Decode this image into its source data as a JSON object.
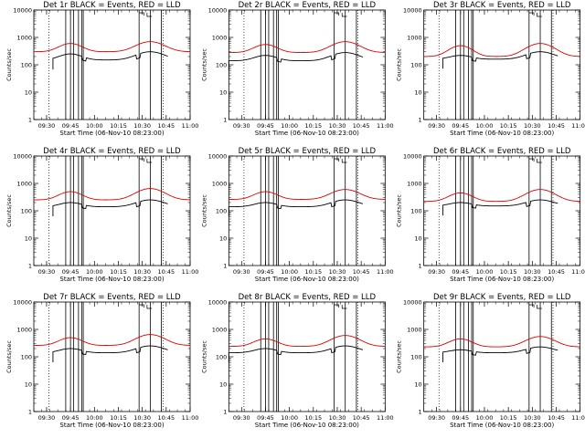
{
  "chart_data": [
    {
      "type": "line",
      "title": "Det 1r BLACK = Events, RED = LLD",
      "xlabel": "Start Time (06-Nov-10 08:23:00)",
      "ylabel": "Counts/sec",
      "yscale": "log",
      "ylim": [
        1,
        10000
      ],
      "xlim": [
        "09:22",
        "11:00"
      ],
      "xticks": [
        "09:30",
        "09:45",
        "10:00",
        "10:15",
        "10:30",
        "10:45",
        "11:00"
      ],
      "yticks": [
        "1",
        "10",
        "100",
        "1000",
        "10000"
      ],
      "red_peaks": [
        600,
        700
      ],
      "red_base": 300,
      "black_peaks": [
        250,
        300
      ],
      "black_base": 150,
      "black_start": "09:34"
    },
    {
      "type": "line",
      "title": "Det 2r BLACK = Events, RED = LLD",
      "xlabel": "Start Time (06-Nov-10 08:23:00)",
      "ylabel": "Counts/sec",
      "yscale": "log",
      "ylim": [
        1,
        10000
      ],
      "xlim": [
        "09:22",
        "11:00"
      ],
      "xticks": [
        "09:30",
        "09:45",
        "10:00",
        "10:15",
        "10:30",
        "10:45",
        "11:00"
      ],
      "yticks": [
        "1",
        "10",
        "100",
        "1000",
        "10000"
      ],
      "red_peaks": [
        550,
        700
      ],
      "red_base": 280,
      "black_peaks": [
        220,
        280
      ],
      "black_base": 140,
      "black_start": "09:22"
    },
    {
      "type": "line",
      "title": "Det 3r BLACK = Events, RED = LLD",
      "xlabel": "Start Time (06-Nov-10 08:23:00)",
      "ylabel": "Counts/sec",
      "yscale": "log",
      "ylim": [
        1,
        10000
      ],
      "xlim": [
        "09:22",
        "11:00"
      ],
      "xticks": [
        "09:30",
        "09:45",
        "10:00",
        "10:15",
        "10:30",
        "10:45",
        "11:00"
      ],
      "yticks": [
        "1",
        "10",
        "100",
        "1000",
        "10000"
      ],
      "red_peaks": [
        500,
        600
      ],
      "red_base": 200,
      "black_peaks": [
        220,
        300
      ],
      "black_base": 160,
      "black_start": "09:34"
    },
    {
      "type": "line",
      "title": "Det 4r BLACK = Events, RED = LLD",
      "xlabel": "Start Time (06-Nov-10 08:23:00)",
      "ylabel": "Counts/sec",
      "yscale": "log",
      "ylim": [
        1,
        10000
      ],
      "xlim": [
        "09:22",
        "11:00"
      ],
      "xticks": [
        "09:30",
        "09:45",
        "10:00",
        "10:15",
        "10:30",
        "10:45",
        "11:00"
      ],
      "yticks": [
        "1",
        "10",
        "100",
        "1000",
        "10000"
      ],
      "red_peaks": [
        500,
        650
      ],
      "red_base": 250,
      "black_peaks": [
        200,
        250
      ],
      "black_base": 140,
      "black_start": "09:34"
    },
    {
      "type": "line",
      "title": "Det 5r BLACK = Events, RED = LLD",
      "xlabel": "Start Time (06-Nov-10 08:23:00)",
      "ylabel": "Counts/sec",
      "yscale": "log",
      "ylim": [
        1,
        10000
      ],
      "xlim": [
        "09:22",
        "11:00"
      ],
      "xticks": [
        "09:30",
        "09:45",
        "10:00",
        "10:15",
        "10:30",
        "10:45",
        "11:00"
      ],
      "yticks": [
        "1",
        "10",
        "100",
        "1000",
        "10000"
      ],
      "red_peaks": [
        500,
        600
      ],
      "red_base": 260,
      "black_peaks": [
        200,
        250
      ],
      "black_base": 140,
      "black_start": "09:22"
    },
    {
      "type": "line",
      "title": "Det 6r BLACK = Events, RED = LLD",
      "xlabel": "Start Time (06-Nov-10 08:23:00)",
      "ylabel": "Counts/sec",
      "yscale": "log",
      "ylim": [
        1,
        10000
      ],
      "xlim": [
        "09:22",
        "11:00"
      ],
      "xticks": [
        "09:30",
        "09:45",
        "10:00",
        "10:15",
        "10:30",
        "10:45",
        "11:00"
      ],
      "yticks": [
        "1",
        "10",
        "100",
        "1000",
        "10000"
      ],
      "red_peaks": [
        450,
        600
      ],
      "red_base": 220,
      "black_peaks": [
        200,
        250
      ],
      "black_base": 150,
      "black_start": "09:34"
    },
    {
      "type": "line",
      "title": "Det 7r BLACK = Events, RED = LLD",
      "xlabel": "Start Time (06-Nov-10 08:23:00)",
      "ylabel": "Counts/sec",
      "yscale": "log",
      "ylim": [
        1,
        10000
      ],
      "xlim": [
        "09:22",
        "11:00"
      ],
      "xticks": [
        "09:30",
        "09:45",
        "10:00",
        "10:15",
        "10:30",
        "10:45",
        "11:00"
      ],
      "yticks": [
        "1",
        "10",
        "100",
        "1000",
        "10000"
      ],
      "red_peaks": [
        500,
        650
      ],
      "red_base": 260,
      "black_peaks": [
        200,
        250
      ],
      "black_base": 140,
      "black_start": "09:34"
    },
    {
      "type": "line",
      "title": "Det 8r BLACK = Events, RED = LLD",
      "xlabel": "Start Time (06-Nov-10 08:23:00)",
      "ylabel": "Counts/sec",
      "yscale": "log",
      "ylim": [
        1,
        10000
      ],
      "xlim": [
        "09:22",
        "11:00"
      ],
      "xticks": [
        "09:30",
        "09:45",
        "10:00",
        "10:15",
        "10:30",
        "10:45",
        "11:00"
      ],
      "yticks": [
        "1",
        "10",
        "100",
        "1000",
        "10000"
      ],
      "red_peaks": [
        450,
        600
      ],
      "red_base": 240,
      "black_peaks": [
        200,
        250
      ],
      "black_base": 140,
      "black_start": "09:22"
    },
    {
      "type": "line",
      "title": "Det 9r BLACK = Events, RED = LLD",
      "xlabel": "Start Time (06-Nov-10 08:23:00)",
      "ylabel": "Counts/sec",
      "yscale": "log",
      "ylim": [
        1,
        10000
      ],
      "xlim": [
        "09:22",
        "11:00"
      ],
      "xticks": [
        "09:30",
        "09:45",
        "10:00",
        "10:15",
        "10:30",
        "10:45",
        "11:00"
      ],
      "yticks": [
        "1",
        "10",
        "100",
        "1000",
        "10000"
      ],
      "red_peaks": [
        450,
        550
      ],
      "red_base": 230,
      "black_peaks": [
        180,
        230
      ],
      "black_base": 140,
      "black_start": "09:34"
    }
  ],
  "colors": {
    "events": "#000000",
    "lld": "#dd0000",
    "background": "#ffffff"
  }
}
